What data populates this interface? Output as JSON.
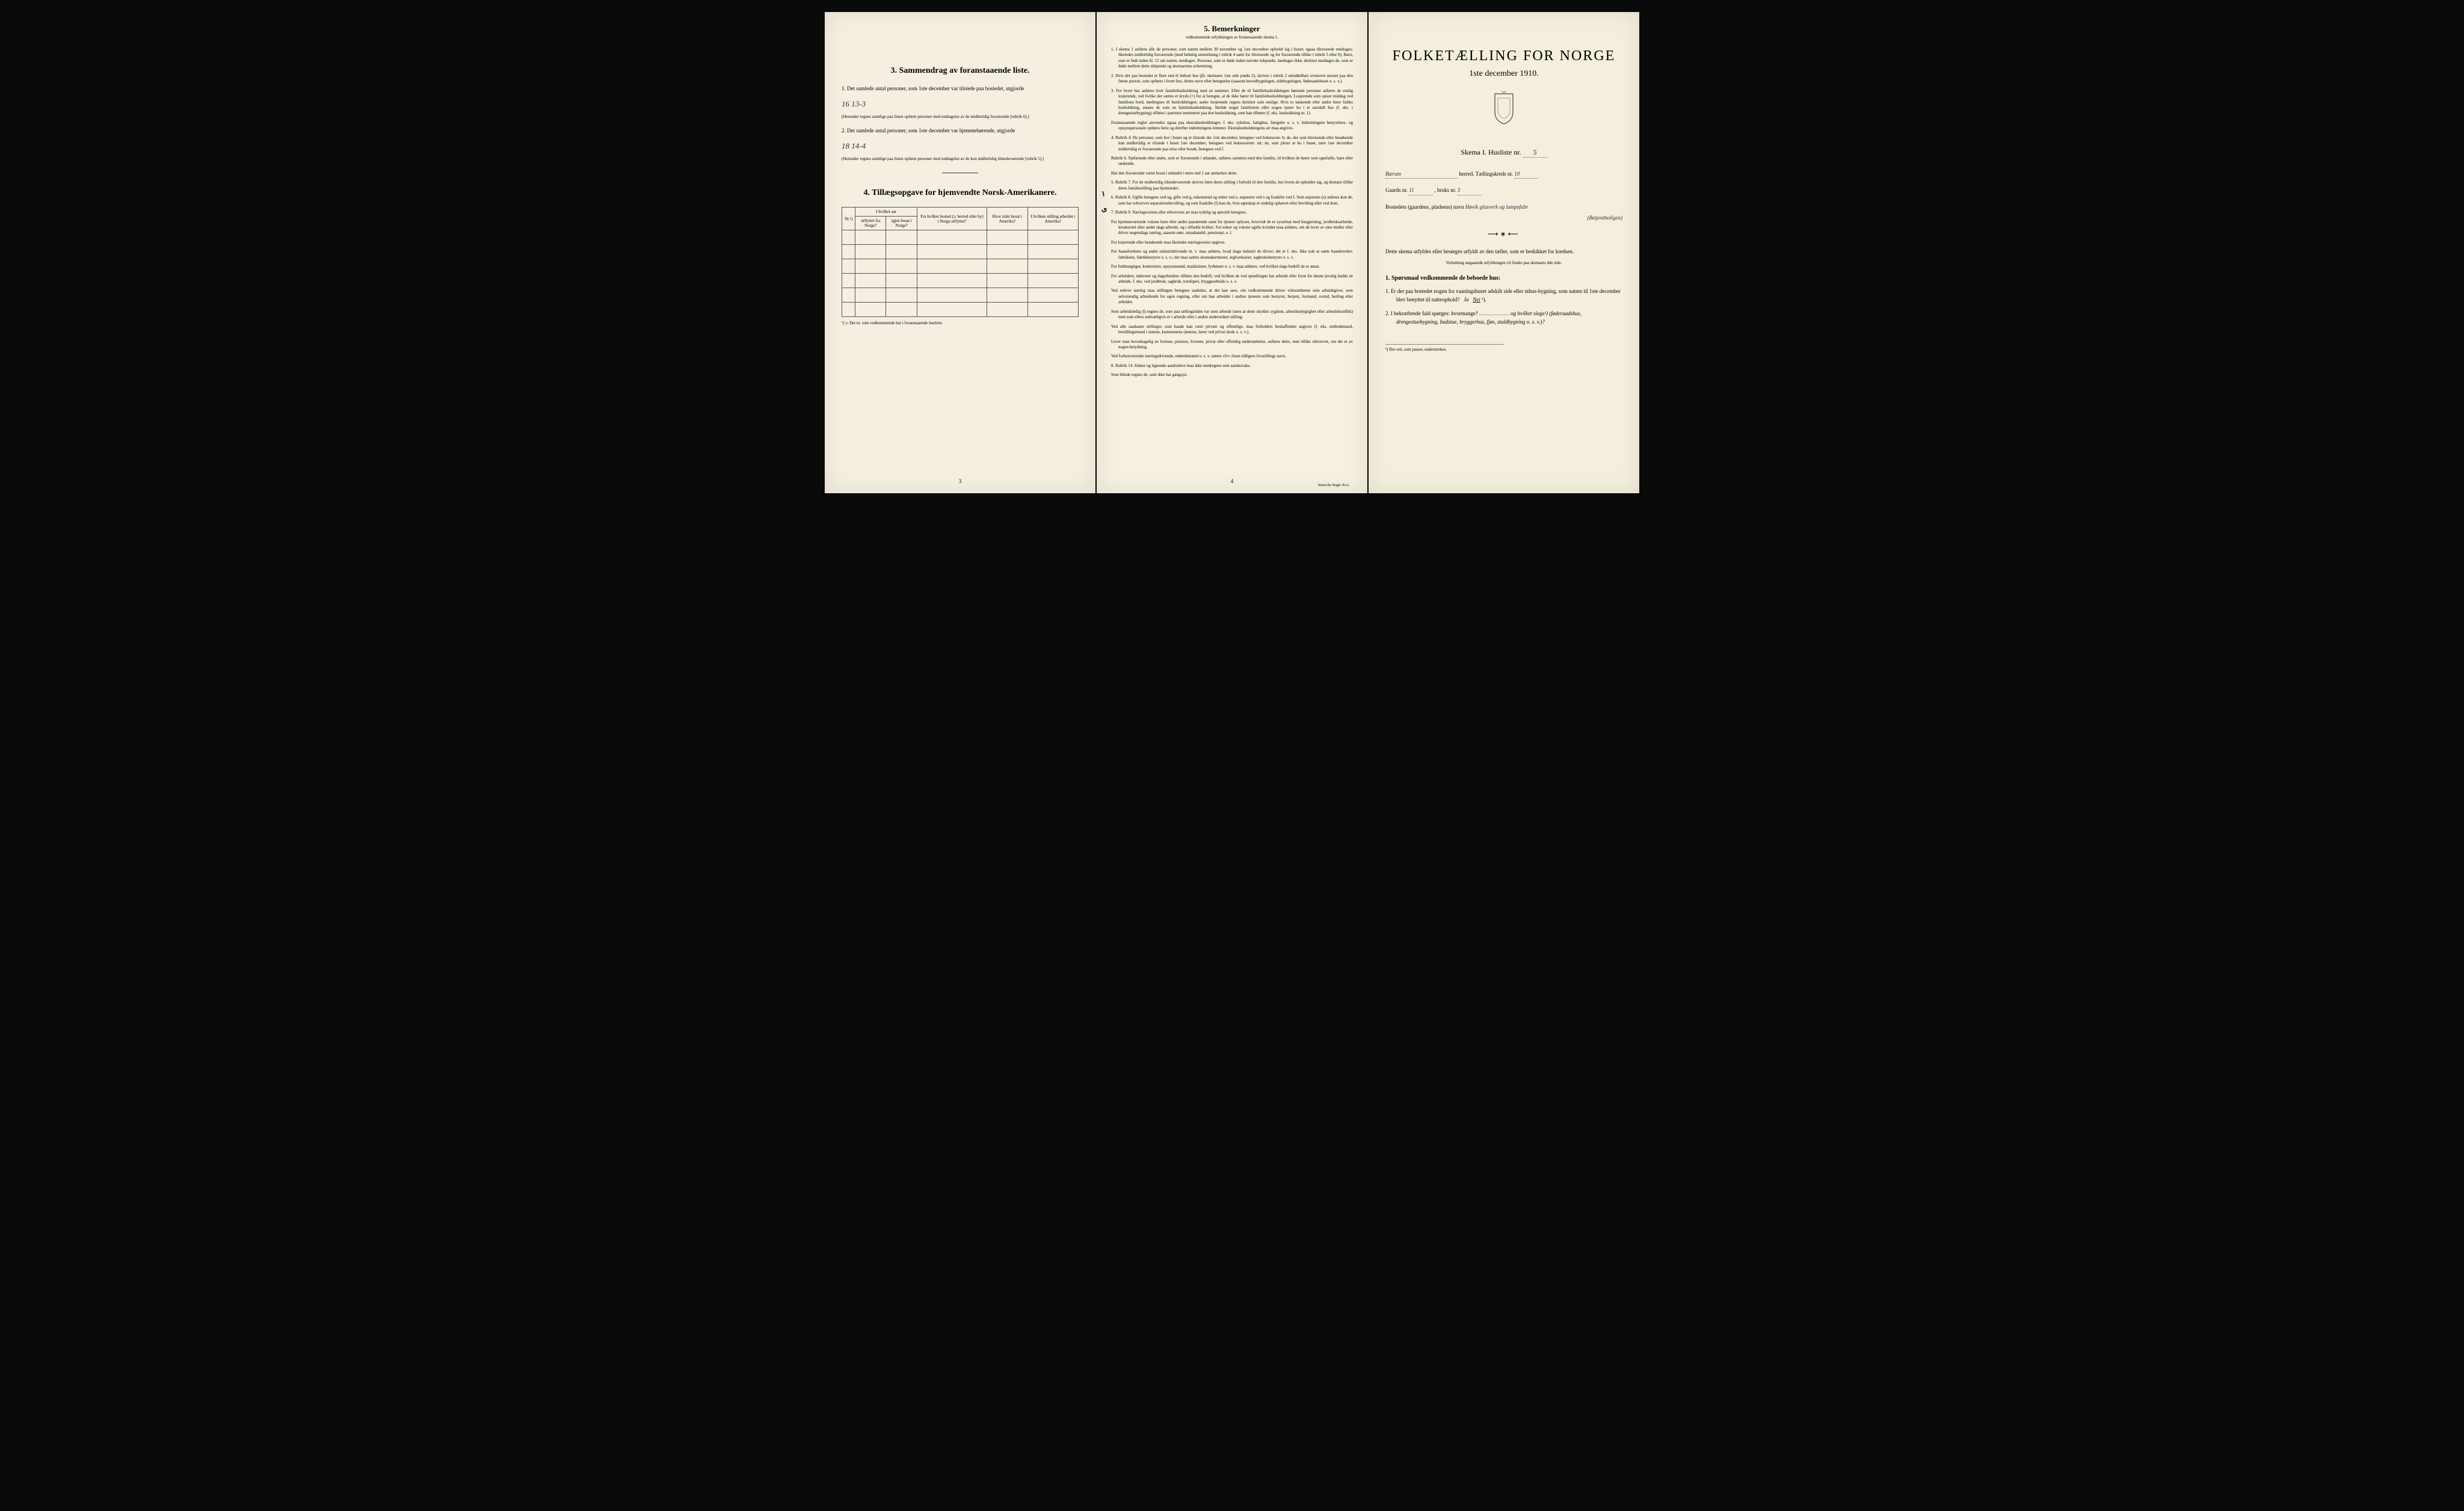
{
  "page1": {
    "section3": {
      "heading_num": "3.",
      "heading": "Sammendrag av foranstaaende liste.",
      "item1_num": "1.",
      "item1_text": "Det samlede antal personer, som 1ste december var tilstede paa bostedet, utgjorde",
      "item1_value": "16    13-3",
      "item1_note": "(Herunder regnes samtlige paa listen opførte personer med undtagelse av de midlertidig fraværende [rubrik 6].)",
      "item2_num": "2.",
      "item2_text": "Det samlede antal personer, som 1ste december var hjemmehørende, utgjorde",
      "item2_value": "18    14-4",
      "item2_note": "(Herunder regnes samtlige paa listen opførte personer med undtagelse av de kun midlertidig tilstedeværende [rubrik 5].)"
    },
    "section4": {
      "heading_num": "4.",
      "heading": "Tillægsopgave for hjemvendte Norsk-Amerikanere.",
      "table": {
        "col1_header": "Nr.¹)",
        "col2_top": "I hvilket aar",
        "col2a": "utflyttet fra Norge?",
        "col2b": "igjen bosat i Norge?",
        "col3_header": "Fra hvilket bosted (ɔ: herred eller by) i Norge utflyttet?",
        "col4_header": "Hvor sidst bosat i Amerika?",
        "col5_header": "I hvilken stilling arbeidet i Amerika?"
      },
      "table_note": "¹) ɔ: Det nr. som vedkommende har i foranstaaende husliste."
    },
    "page_num": "3"
  },
  "page2": {
    "heading_num": "5.",
    "heading": "Bemerkninger",
    "subheading": "vedkommende utfyldningen av foranstaaende skema 1.",
    "items": [
      "1. I skema 1 anføres alle de personer, som natten mellem 30 november og 1ste december opholdt sig i huset; ogsaa tilreisende medtages; likeledes midlertidig fraværende (med behørig anmerkning i rubrik 4 samt for tilreisende og for fraværende tillike i rubrik 5 eller 6). Barn, som er født inden kl. 12 om natten, medtages. Personer, som er døde inden nævnte tidspunkt, medtages ikke; derimot medtages de, som er døde mellem dette tidspunkt og skemaernes avhentning.",
      "2. Hvis der paa bostedet er flere end ét beboet hus (jfr. skemaets 1ste side punkt 2), skrives i rubrik 2 umiddelbart ovenover navnet paa den første person, som opføres i hvert hus, dettes navn eller betegnelse (saasom hovedbygningen, sidebygningen, føderaadshuset o. s. v.).",
      "3. For hvert hus anføres hver familiehusholdning med sit nummer. Efter de til familiehusholdningen hørende personer anføres de enslig losjerende, ved hvilke der sættes et kryds (×) for at betegne, at de ikke hører til familiehusholdningen. Losjerende som spiser middag ved familiens bord, medregnes til husholdningen; andre losjerende regnes derimot som enslige. Hvis to søskende eller andre fører fælles husholdning, ansees de som en familiehusholdning. Skulde noget familielem eller nogen tjener bo i et særskilt hus (f. eks. i drengestuebygning) tilføies i parentes nummeret paa den husholdning, som han tilhører (f. eks. husholdning nr. 1).",
      "Foranstaaende regler anvendes ogsaa paa ekstrahusholdninger, f. eks. sykehus, fattighus, fængsler o. s. v. Indretningens bestyrelses- og opsynspersonale opføres først og derefter indretningens lemmer. Ekstrahusholdningens art maa angives.",
      "4. Rubrik 4. De personer, som bor i huset og er tilstede der 1ste december, betegnes ved bokstaven: b; de, der som tilreisende eller besøkende kun midlertidig er tilstede i huset 1ste december, betegnes ved bokstaverne: mt; de, som pleier at bo i huset, men 1ste december midlertidig er fraværende paa reise eller besøk, betegnes ved f.",
      "Rubrik 6. Sjøfarende eller andre, som er fraværende i utlandet, opføres sammen med den familie, til hvilken de hører som egtefælle, barn eller søskende.",
      "Har den fraværende været bosat i utlandet i mere end 1 aar anmerkes dette.",
      "5. Rubrik 7. For de midlertidig tilstedeværende skrives først deres stilling i forhold til den familie, hos hvem de opholder sig, og dernæst tillike deres familiestilling paa hjemstedet.",
      "6. Rubrik 8. Ugifte betegnes ved ug, gifte ved g, enkemænd og enker ved e, separerte ved s og fraskilte ved f. Som separerte (s) anføres kun de, som har erhvervet separationsbevilling, og som fraskilte (f) kun de, hvis egteskap er endelig ophævet efter bevilling eller ved dom.",
      "7. Rubrik 9. Næringsveiens eller erhvervets art maa tydelig og specielt betegnes.",
      "For hjemmeværende voksne barn eller andre paarørende samt for tjenere oplyses, hvorvidt de er sysselsat med husgjerning, jordbruksarbeide, kreaturstel eller andet slags arbeide, og i tilfælde hvilket. For enker og voksne ugifte kvinder maa anføres, om de lever av sine midler eller driver nogenslags næring, saasom søm, smaahandel, pensionat, o. l.",
      "For losjerende eller besøkende maa likeledes næringsveien opgives.",
      "For haandverkere og andre industridrivende m. v. maa anføres, hvad slags industri de driver; det er f. eks. ikke nok at sætte haandverker, fabrikeier, fabrikbestyrer o. s. v.; der maa sættes skomakermester, teglverkseier, sagbruksbestyrer o. s. v.",
      "For fuldmægtiger, kontorister, opsynsmænd, maskinister, fyrbøtere o. s. v. maa anføres, ved hvilket slags bedrift de er ansat.",
      "For arbeidere, inderster og dagarbeidere tilføies den bedrift, ved hvilken de ved optællingen har arbeide eller forut for denne jevnlig hadde sit arbeide, f. eks. ved jordbruk, sagbruk, træsliperi, bryggearbeide o. s. v.",
      "Ved enhver næring maa stillingen betegnes saaledes, at det kan sees, om vedkommende driver virksomheten som arbeidsgiver, som selvstændig arbeidende for egen regning, eller om han arbeider i andres tjeneste som bestyrer, betjent, formand, svend, lærling eller arbeider.",
      "Som arbeidsledig (l) regnes de, som paa tællingstiden var uten arbeide (uten at dette skyldes sygdom, arbeidsudygtighet eller arbeidskonflikt) men som ellers sedvanligvis er i arbeide eller i anden underordnet stilling.",
      "Ved alle saadanne stillinger, som baade kan være private og offentlige, maa forholdets beskaffenhet angives (f. eks. embedsmand, bestillingsmand i statens, kommunens tjeneste, lærer ved privat skole o. s. v.).",
      "Lever man hovedsagelig av formue, pension, livrente, privat eller offentlig understøttelse, anføres dette, men tillike erhvervet, om det er av nogen betydning.",
      "Ved forhenværende næringsdrivende, embedsmænd o. s. v. sættes «fv» foran tidligere livsstillings navn.",
      "8. Rubrik 14. Sinker og lignende aandssløve maa ikke medregnes som aandssvake.",
      "Som blinde regnes de, som ikke har gangsyn."
    ],
    "page_num": "4",
    "printer": "Steen'ske Bogtr.   Kr.a."
  },
  "page3": {
    "title": "FOLKETÆLLING FOR NORGE",
    "date": "1ste december 1910.",
    "skema_label": "Skema  I.   Husliste nr.",
    "skema_value": "5",
    "herred_value": "Bærum",
    "herred_label": "herred.   Tællingskreds nr.",
    "kreds_value": "10",
    "gaards_label": "Gaards nr.",
    "gaards_value": "11",
    "bruks_label": ", bruks nr.",
    "bruks_value": "3",
    "bosted_label": "Bostedets (gaardens, pladsens) navn",
    "bosted_value": "Høvik glasverk og lampefabr",
    "bosted_value2": "(Betjentboligen)",
    "instruction1": "Dette skema utfyldes eller besørges utfyldt av den tæller, som er beskikket for kredsen.",
    "instruction2": "Veiledning angaaende utfyldningen vil findes paa skemaets 4de side.",
    "q_heading_num": "1.",
    "q_heading": "Spørsmaal vedkommende de beboede hus:",
    "q1_num": "1.",
    "q1_text": "Er der paa bostedet nogen fra vaaningshuset adskilt side eller uthus-bygning, som natten til 1ste december blev benyttet til natteophold?",
    "q1_answer_ja": "Ja",
    "q1_answer_nei": "Nei",
    "q1_note": "¹).",
    "q2_num": "2.",
    "q2_text": "I bekræftende fald spørges: hvormange?",
    "q2_text2": "og hvilket slags¹) (føderaadshus, drengestuebygning, badstue, bryggerhus, fjøs, staldbygning o. s. v.)?",
    "footnote": "¹) Det ord, som passer, understrekes."
  }
}
